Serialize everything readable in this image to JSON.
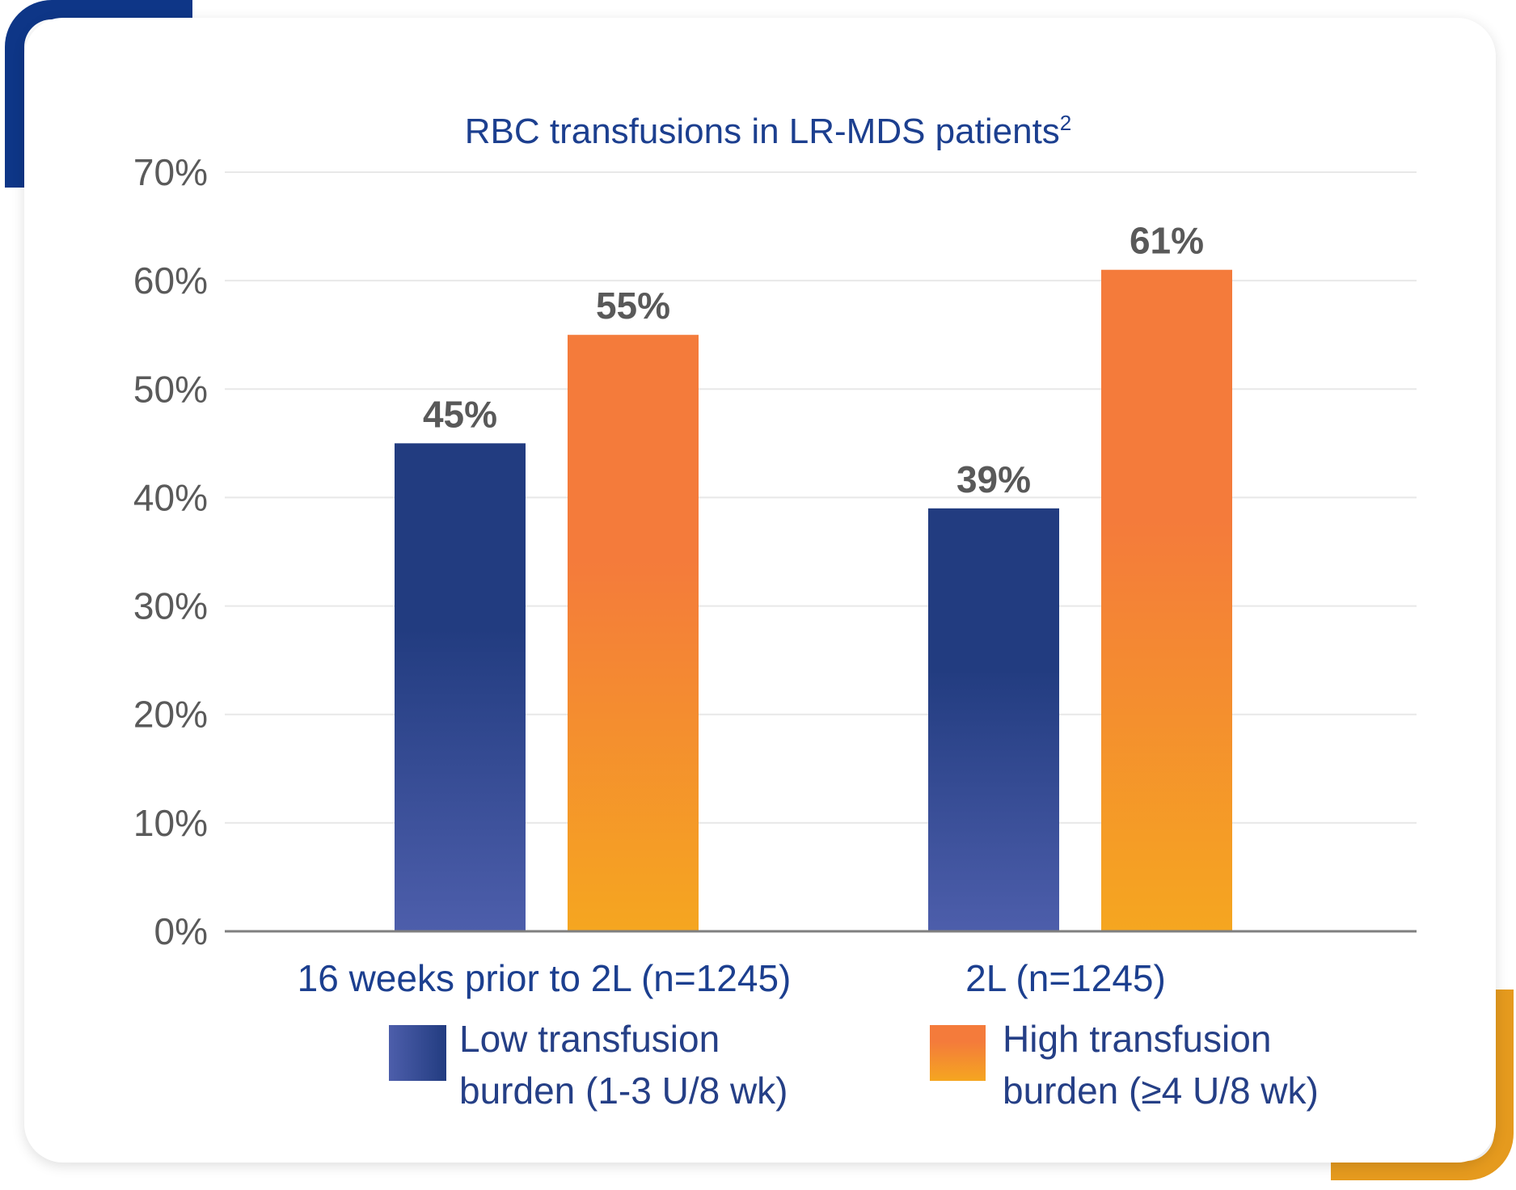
{
  "chart_data": {
    "type": "bar",
    "title": "RBC transfusions in LR-MDS patients",
    "title_superscript": "2",
    "categories": [
      "16 weeks prior to 2L (n=1245)",
      "2L (n=1245)"
    ],
    "series": [
      {
        "name_lines": [
          "Low transfusion",
          "burden (1-3 U/8 wk)"
        ],
        "values": [
          45,
          39
        ],
        "labels": [
          "45%",
          "39%"
        ],
        "color_top": "#223c80",
        "color_bottom": "#4d5eab"
      },
      {
        "name_lines": [
          "High transfusion",
          "burden (≥4 U/8 wk)"
        ],
        "values": [
          55,
          61
        ],
        "labels": [
          "55%",
          "61%"
        ],
        "color_top": "#f47b3b",
        "color_bottom": "#f5a620"
      }
    ],
    "ylim": [
      0,
      70
    ],
    "yticks": [
      "0%",
      "10%",
      "20%",
      "30%",
      "40%",
      "50%",
      "60%",
      "70%"
    ],
    "grid": true,
    "legend_position": "bottom"
  }
}
